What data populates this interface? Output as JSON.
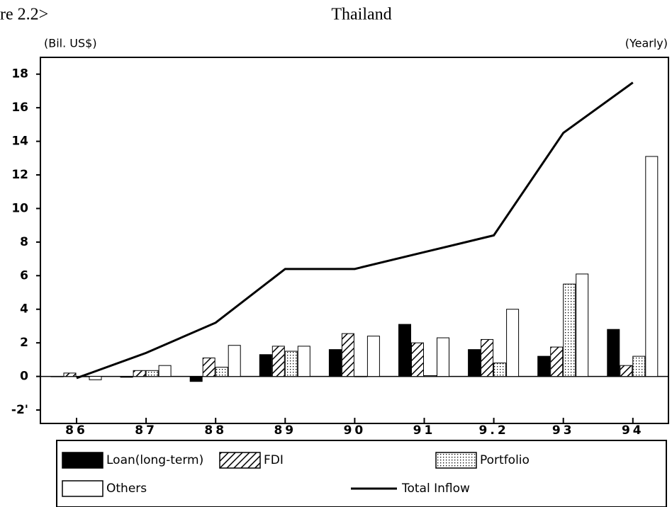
{
  "chart_data": {
    "type": "bar_line",
    "figure_label": "re 2.2>",
    "title": "Thailand",
    "y_unit_label": "(Bil. US$)",
    "frequency_label": "(Yearly)",
    "categories": [
      "86",
      "87",
      "88",
      "89",
      "90",
      "91",
      "9.2",
      "93",
      "94"
    ],
    "ylim": [
      -2.8,
      19
    ],
    "yticks": [
      {
        "value": -2,
        "label": "-2'"
      },
      0,
      2,
      4,
      6,
      8,
      10,
      12,
      14,
      16,
      18
    ],
    "grid": false,
    "series": [
      {
        "name": "Loan(long-term)",
        "color": "#000000",
        "fill": "solid",
        "kind": "bar",
        "values": [
          0,
          -0.05,
          -0.3,
          1.3,
          1.6,
          3.1,
          1.6,
          1.2,
          2.8
        ]
      },
      {
        "name": "FDI",
        "color": "#000000",
        "fill": "hatch",
        "kind": "bar",
        "values": [
          0.2,
          0.35,
          1.1,
          1.8,
          2.55,
          2.0,
          2.2,
          1.75,
          0.65
        ]
      },
      {
        "name": "Portfolio",
        "color": "#000000",
        "fill": "dots",
        "kind": "bar",
        "values": [
          0,
          0.35,
          0.55,
          1.5,
          0,
          0.05,
          0.8,
          5.5,
          1.2
        ]
      },
      {
        "name": "Others",
        "color": "#000000",
        "fill": "empty",
        "kind": "bar",
        "values": [
          -0.2,
          0.65,
          1.85,
          1.8,
          2.4,
          2.3,
          4.0,
          6.1,
          13.1
        ]
      },
      {
        "name": "Total Inflow",
        "color": "#000000",
        "kind": "line",
        "values": [
          -0.1,
          1.4,
          3.2,
          6.4,
          6.4,
          7.4,
          8.4,
          14.5,
          17.5
        ]
      }
    ]
  }
}
